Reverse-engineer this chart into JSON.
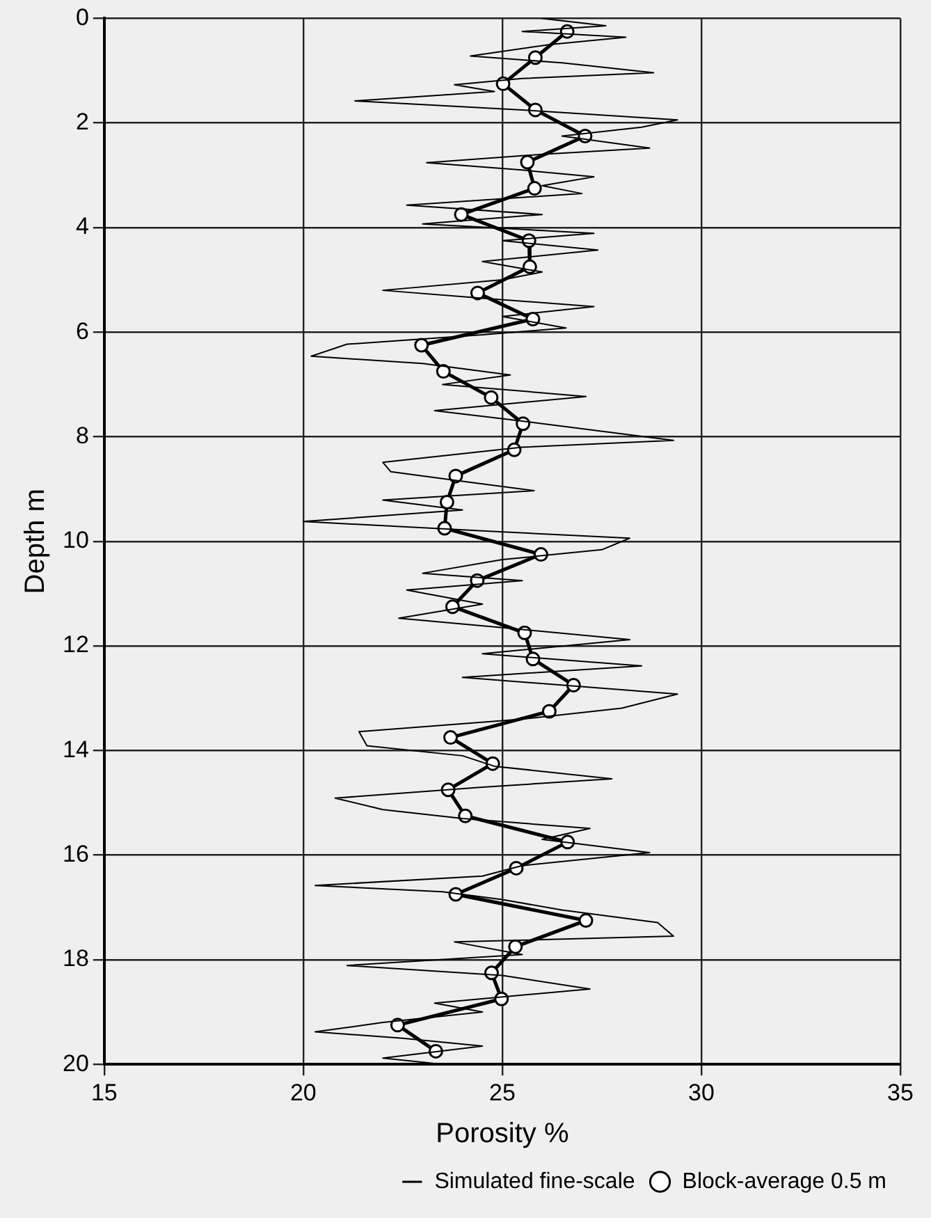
{
  "chart_data": {
    "type": "line",
    "xlabel": "Porosity %",
    "ylabel": "Depth m",
    "xlim": [
      15,
      35
    ],
    "xticks": [
      15,
      20,
      25,
      30,
      35
    ],
    "ylim": [
      20,
      0
    ],
    "yticks": [
      0,
      2,
      4,
      6,
      8,
      10,
      12,
      14,
      16,
      18,
      20
    ],
    "grid": true,
    "legend": "bottom right",
    "line_style": "solid",
    "series": [
      {
        "name": "Simulated fine-scale",
        "color": "#000000",
        "marker": "none",
        "x": [
          26.0,
          27.6,
          25.5,
          28.1,
          26.2,
          24.2,
          26.5,
          28.8,
          25.5,
          23.8,
          24.8,
          21.3,
          25.5,
          29.4,
          28.5,
          26.5,
          28.7,
          26.0,
          23.1,
          25.5,
          27.3,
          26.0,
          27.0,
          22.6,
          26.0,
          23.0,
          27.3,
          25.0,
          27.4,
          24.5,
          26.0,
          25.0,
          22.0,
          24.5,
          27.3,
          25.0,
          26.6,
          24.5,
          21.1,
          20.2,
          23.0,
          25.2,
          23.5,
          27.1,
          23.3,
          25.5,
          29.3,
          25.5,
          22.0,
          22.2,
          24.0,
          25.8,
          22.0,
          24.0,
          20.0,
          24.5,
          28.2,
          27.5,
          25.0,
          23.0,
          25.5,
          22.6,
          24.5,
          22.4,
          25.0,
          28.2,
          24.5,
          28.5,
          24.0,
          29.4,
          28.0,
          25.5,
          21.4,
          21.6,
          24.0,
          24.8,
          27.75,
          24.5,
          20.8,
          22.0,
          24.0,
          27.2,
          26.0,
          28.7,
          25.5,
          24.5,
          20.3,
          23.5,
          25.0,
          26.5,
          28.9,
          29.3,
          23.8,
          25.5,
          21.1,
          25.0,
          27.2,
          23.3,
          24.5,
          22.0,
          20.3,
          22.5,
          24.5,
          22.0,
          23.5
        ],
        "values": [
          0.0,
          0.14,
          0.25,
          0.36,
          0.5,
          0.72,
          0.85,
          1.04,
          1.15,
          1.27,
          1.4,
          1.58,
          1.75,
          1.94,
          2.08,
          2.25,
          2.48,
          2.6,
          2.76,
          2.9,
          3.03,
          3.2,
          3.35,
          3.57,
          3.75,
          3.93,
          4.11,
          4.25,
          4.43,
          4.65,
          4.85,
          5.0,
          5.2,
          5.35,
          5.51,
          5.7,
          5.92,
          6.05,
          6.23,
          6.46,
          6.6,
          6.82,
          7.0,
          7.23,
          7.5,
          7.7,
          8.07,
          8.2,
          8.49,
          8.67,
          8.85,
          9.03,
          9.21,
          9.4,
          9.62,
          9.8,
          9.94,
          10.16,
          10.35,
          10.61,
          10.75,
          10.93,
          11.2,
          11.47,
          11.65,
          11.88,
          12.15,
          12.38,
          12.6,
          12.92,
          13.19,
          13.4,
          13.64,
          13.91,
          14.1,
          14.3,
          14.54,
          14.7,
          14.91,
          15.13,
          15.3,
          15.49,
          15.7,
          15.95,
          16.2,
          16.4,
          16.58,
          16.7,
          16.85,
          17.05,
          17.29,
          17.55,
          17.66,
          17.9,
          18.11,
          18.3,
          18.56,
          18.83,
          19.0,
          19.2,
          19.38,
          19.5,
          19.65,
          19.88,
          20.0
        ]
      },
      {
        "name": "Block-average 0.5 m",
        "color": "#000000",
        "marker": "circle",
        "x": [
          26.63,
          25.83,
          25.02,
          25.83,
          27.08,
          25.63,
          25.81,
          23.97,
          25.67,
          25.69,
          24.38,
          25.77,
          22.97,
          23.52,
          24.72,
          25.52,
          25.3,
          23.83,
          23.61,
          23.55,
          25.97,
          24.37,
          23.75,
          25.56,
          25.77,
          26.79,
          26.18,
          23.7,
          24.76,
          23.64,
          24.07,
          26.64,
          25.35,
          23.83,
          27.1,
          25.33,
          24.73,
          24.98,
          22.37,
          23.33
        ],
        "values": [
          0.25,
          0.75,
          1.25,
          1.75,
          2.25,
          2.75,
          3.25,
          3.75,
          4.25,
          4.75,
          5.25,
          5.75,
          6.25,
          6.75,
          7.25,
          7.75,
          8.25,
          8.75,
          9.25,
          9.75,
          10.25,
          10.75,
          11.25,
          11.75,
          12.25,
          12.75,
          13.25,
          13.75,
          14.25,
          14.75,
          15.25,
          15.75,
          16.25,
          16.75,
          17.25,
          17.75,
          18.25,
          18.75,
          19.25,
          19.75
        ]
      }
    ]
  }
}
